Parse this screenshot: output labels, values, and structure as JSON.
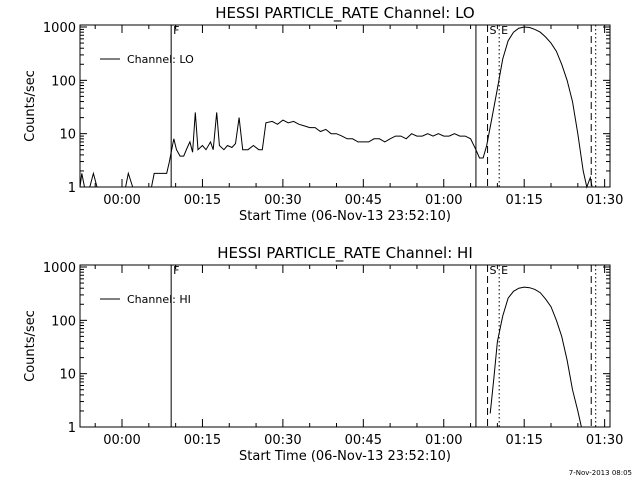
{
  "footer": {
    "timestamp": "7-Nov-2013 08:05"
  },
  "chart_data": [
    {
      "type": "line",
      "title": "HESSI PARTICLE_RATE Channel: LO",
      "xlabel": "Start Time (06-Nov-13 23:52:10)",
      "ylabel": "Counts/sec",
      "x_ticks": [
        "00:00",
        "00:15",
        "00:30",
        "00:45",
        "01:00",
        "01:15",
        "01:30"
      ],
      "y_ticks": [
        "1",
        "10",
        "100",
        "1000"
      ],
      "y_scale": "log",
      "xlim": [
        "23:52:10",
        "01:31:00"
      ],
      "ylim": [
        1,
        1000
      ],
      "legend": {
        "label": "Channel: LO",
        "placement": "top-left"
      },
      "markers": [
        {
          "label": "F",
          "time": "00:09:10",
          "style": "solid"
        },
        {
          "label": "",
          "time": "01:06:00",
          "style": "solid"
        },
        {
          "label": "S",
          "time": "01:08:10",
          "style": "dashed"
        },
        {
          "label": "E",
          "time": "01:10:20",
          "style": "dotted"
        },
        {
          "label": "",
          "time": "01:27:30",
          "style": "dashed"
        },
        {
          "label": "",
          "time": "01:28:20",
          "style": "dotted"
        }
      ],
      "series": [
        {
          "name": "Channel: LO",
          "points": [
            [
              "23:52:10",
              1
            ],
            [
              "23:52:30",
              1.8
            ],
            [
              "23:53:00",
              1
            ],
            [
              "23:54:00",
              1
            ],
            [
              "23:54:40",
              1.8
            ],
            [
              "23:55:20",
              1
            ],
            [
              "23:57:00",
              1
            ],
            [
              "23:58:00",
              1
            ],
            [
              "23:59:00",
              1
            ],
            [
              "00:00:40",
              1
            ],
            [
              "00:01:10",
              1.8
            ],
            [
              "00:02:00",
              1
            ],
            [
              "00:03:00",
              1
            ],
            [
              "00:04:00",
              1
            ],
            [
              "00:05:30",
              1
            ],
            [
              "00:06:00",
              1.8
            ],
            [
              "00:07:30",
              1.8
            ],
            [
              "00:08:20",
              1.8
            ],
            [
              "00:08:50",
              3
            ],
            [
              "00:09:10",
              4.5
            ],
            [
              "00:09:40",
              8
            ],
            [
              "00:10:10",
              5
            ],
            [
              "00:10:50",
              3.8
            ],
            [
              "00:11:30",
              3.8
            ],
            [
              "00:12:10",
              5.5
            ],
            [
              "00:12:40",
              7
            ],
            [
              "00:13:10",
              4.5
            ],
            [
              "00:13:40",
              25
            ],
            [
              "00:14:10",
              5
            ],
            [
              "00:15:00",
              6
            ],
            [
              "00:15:40",
              5
            ],
            [
              "00:16:30",
              7
            ],
            [
              "00:17:00",
              5
            ],
            [
              "00:17:40",
              25
            ],
            [
              "00:18:10",
              6
            ],
            [
              "00:19:00",
              5
            ],
            [
              "00:19:40",
              6
            ],
            [
              "00:20:30",
              5.5
            ],
            [
              "00:21:10",
              6.5
            ],
            [
              "00:21:50",
              20
            ],
            [
              "00:22:30",
              5
            ],
            [
              "00:23:30",
              5
            ],
            [
              "00:24:30",
              6
            ],
            [
              "00:25:30",
              5
            ],
            [
              "00:26:10",
              5
            ],
            [
              "00:26:50",
              16
            ],
            [
              "00:28:00",
              17
            ],
            [
              "00:29:00",
              15
            ],
            [
              "00:30:00",
              18
            ],
            [
              "00:31:00",
              16
            ],
            [
              "00:32:00",
              17
            ],
            [
              "00:33:00",
              15
            ],
            [
              "00:34:00",
              14
            ],
            [
              "00:35:00",
              13
            ],
            [
              "00:36:00",
              13
            ],
            [
              "00:37:00",
              11
            ],
            [
              "00:38:00",
              12
            ],
            [
              "00:39:00",
              10
            ],
            [
              "00:40:00",
              10
            ],
            [
              "00:41:00",
              9
            ],
            [
              "00:42:00",
              8
            ],
            [
              "00:43:00",
              8
            ],
            [
              "00:44:00",
              7
            ],
            [
              "00:45:00",
              7
            ],
            [
              "00:46:00",
              7
            ],
            [
              "00:47:00",
              8
            ],
            [
              "00:48:00",
              8
            ],
            [
              "00:49:00",
              7
            ],
            [
              "00:50:00",
              8
            ],
            [
              "00:51:00",
              9
            ],
            [
              "00:52:00",
              9
            ],
            [
              "00:53:00",
              8
            ],
            [
              "00:54:00",
              10
            ],
            [
              "00:55:00",
              9
            ],
            [
              "00:56:00",
              9
            ],
            [
              "00:57:00",
              10
            ],
            [
              "00:58:00",
              9
            ],
            [
              "00:59:00",
              10
            ],
            [
              "01:00:00",
              9
            ],
            [
              "01:01:00",
              9
            ],
            [
              "01:02:00",
              10
            ],
            [
              "01:03:00",
              9
            ],
            [
              "01:04:00",
              9
            ],
            [
              "01:05:00",
              8
            ],
            [
              "01:06:00",
              5
            ],
            [
              "01:06:40",
              3.5
            ],
            [
              "01:07:20",
              3.5
            ],
            [
              "01:08:00",
              6
            ],
            [
              "01:09:00",
              20
            ],
            [
              "01:10:00",
              70
            ],
            [
              "01:11:00",
              250
            ],
            [
              "01:12:00",
              550
            ],
            [
              "01:13:00",
              800
            ],
            [
              "01:14:00",
              950
            ],
            [
              "01:15:00",
              1000
            ],
            [
              "01:16:00",
              980
            ],
            [
              "01:17:00",
              900
            ],
            [
              "01:18:00",
              800
            ],
            [
              "01:19:00",
              650
            ],
            [
              "01:20:00",
              500
            ],
            [
              "01:21:00",
              350
            ],
            [
              "01:22:00",
              200
            ],
            [
              "01:23:00",
              100
            ],
            [
              "01:24:00",
              40
            ],
            [
              "01:25:00",
              10
            ],
            [
              "01:26:00",
              2
            ],
            [
              "01:26:40",
              1
            ],
            [
              "01:27:20",
              1.5
            ],
            [
              "01:27:40",
              1
            ]
          ]
        }
      ]
    },
    {
      "type": "line",
      "title": "HESSI PARTICLE_RATE Channel: HI",
      "xlabel": "Start Time (06-Nov-13 23:52:10)",
      "ylabel": "Counts/sec",
      "x_ticks": [
        "00:00",
        "00:15",
        "00:30",
        "00:45",
        "01:00",
        "01:15",
        "01:30"
      ],
      "y_ticks": [
        "1",
        "10",
        "100",
        "1000"
      ],
      "y_scale": "log",
      "xlim": [
        "23:52:10",
        "01:31:00"
      ],
      "ylim": [
        1,
        1000
      ],
      "legend": {
        "label": "Channel: HI",
        "placement": "top-left"
      },
      "markers": [
        {
          "label": "F",
          "time": "00:09:10",
          "style": "solid"
        },
        {
          "label": "",
          "time": "01:06:00",
          "style": "solid"
        },
        {
          "label": "S",
          "time": "01:08:10",
          "style": "dashed"
        },
        {
          "label": "E",
          "time": "01:10:20",
          "style": "dotted"
        },
        {
          "label": "",
          "time": "01:27:30",
          "style": "dashed"
        },
        {
          "label": "",
          "time": "01:28:20",
          "style": "dotted"
        }
      ],
      "series": [
        {
          "name": "Channel: HI",
          "points": [
            [
              "01:08:40",
              1.8
            ],
            [
              "01:09:20",
              8
            ],
            [
              "01:10:00",
              40
            ],
            [
              "01:11:00",
              120
            ],
            [
              "01:12:00",
              260
            ],
            [
              "01:13:00",
              350
            ],
            [
              "01:14:00",
              400
            ],
            [
              "01:15:00",
              420
            ],
            [
              "01:16:00",
              410
            ],
            [
              "01:17:00",
              380
            ],
            [
              "01:18:00",
              330
            ],
            [
              "01:19:00",
              250
            ],
            [
              "01:20:00",
              180
            ],
            [
              "01:21:00",
              100
            ],
            [
              "01:22:00",
              50
            ],
            [
              "01:23:00",
              18
            ],
            [
              "01:24:00",
              5
            ],
            [
              "01:25:00",
              2
            ],
            [
              "01:25:40",
              1
            ]
          ]
        }
      ]
    }
  ]
}
